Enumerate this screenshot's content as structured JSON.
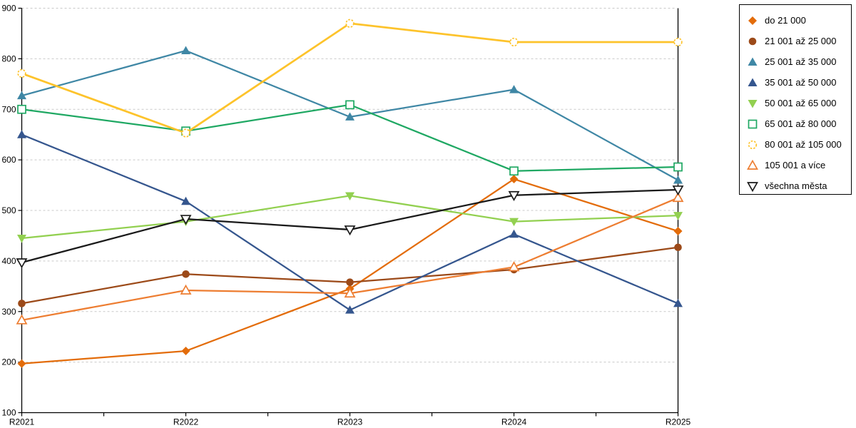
{
  "chart_data": {
    "type": "line",
    "categories": [
      "R2021",
      "R2022",
      "R2023",
      "R2024",
      "R2025"
    ],
    "series": [
      {
        "name": "do 21 000",
        "color": "#e36c0a",
        "marker": "diamond",
        "marker_style": "filled",
        "values": [
          197,
          222,
          345,
          562,
          459
        ]
      },
      {
        "name": "21 001 až 25 000",
        "color": "#9c4a19",
        "marker": "circle",
        "marker_style": "filled",
        "values": [
          316,
          374,
          358,
          383,
          427
        ]
      },
      {
        "name": "25 001 až 35 000",
        "color": "#3f87a5",
        "marker": "triangle",
        "marker_style": "filled",
        "values": [
          727,
          816,
          685,
          739,
          560
        ]
      },
      {
        "name": "35 001 až 50 000",
        "color": "#35568e",
        "marker": "triangle",
        "marker_style": "filled",
        "values": [
          650,
          518,
          303,
          453,
          316
        ]
      },
      {
        "name": "50 001 až 65 000",
        "color": "#92d050",
        "marker": "triangle-down",
        "marker_style": "filled",
        "values": [
          445,
          478,
          529,
          478,
          490
        ]
      },
      {
        "name": "65 001 až 80 000",
        "color": "#1fa863",
        "marker": "square",
        "marker_style": "open",
        "values": [
          700,
          657,
          709,
          578,
          586
        ]
      },
      {
        "name": "80 001 až 105 000",
        "color": "#fdc32b",
        "marker": "circle",
        "marker_style": "open-dashed",
        "values": [
          771,
          653,
          870,
          833,
          833
        ]
      },
      {
        "name": "105 001 a více",
        "color": "#ed7d31",
        "marker": "triangle",
        "marker_style": "open",
        "values": [
          283,
          342,
          336,
          388,
          525
        ]
      },
      {
        "name": "všechna města",
        "color": "#1a1a1a",
        "marker": "triangle-down",
        "marker_style": "open",
        "values": [
          397,
          483,
          462,
          530,
          541
        ]
      }
    ],
    "title": "",
    "xlabel": "",
    "ylabel": "",
    "ylim": [
      100,
      900
    ],
    "yticks": [
      100,
      200,
      300,
      400,
      500,
      600,
      700,
      800,
      900
    ],
    "grid": "horizontal-dashed",
    "legend_position": "right",
    "colors": {
      "gridline": "#c9c9c9",
      "axis": "#000000",
      "background": "#ffffff",
      "legend_border": "#000000",
      "tick_label": "#000000"
    }
  }
}
